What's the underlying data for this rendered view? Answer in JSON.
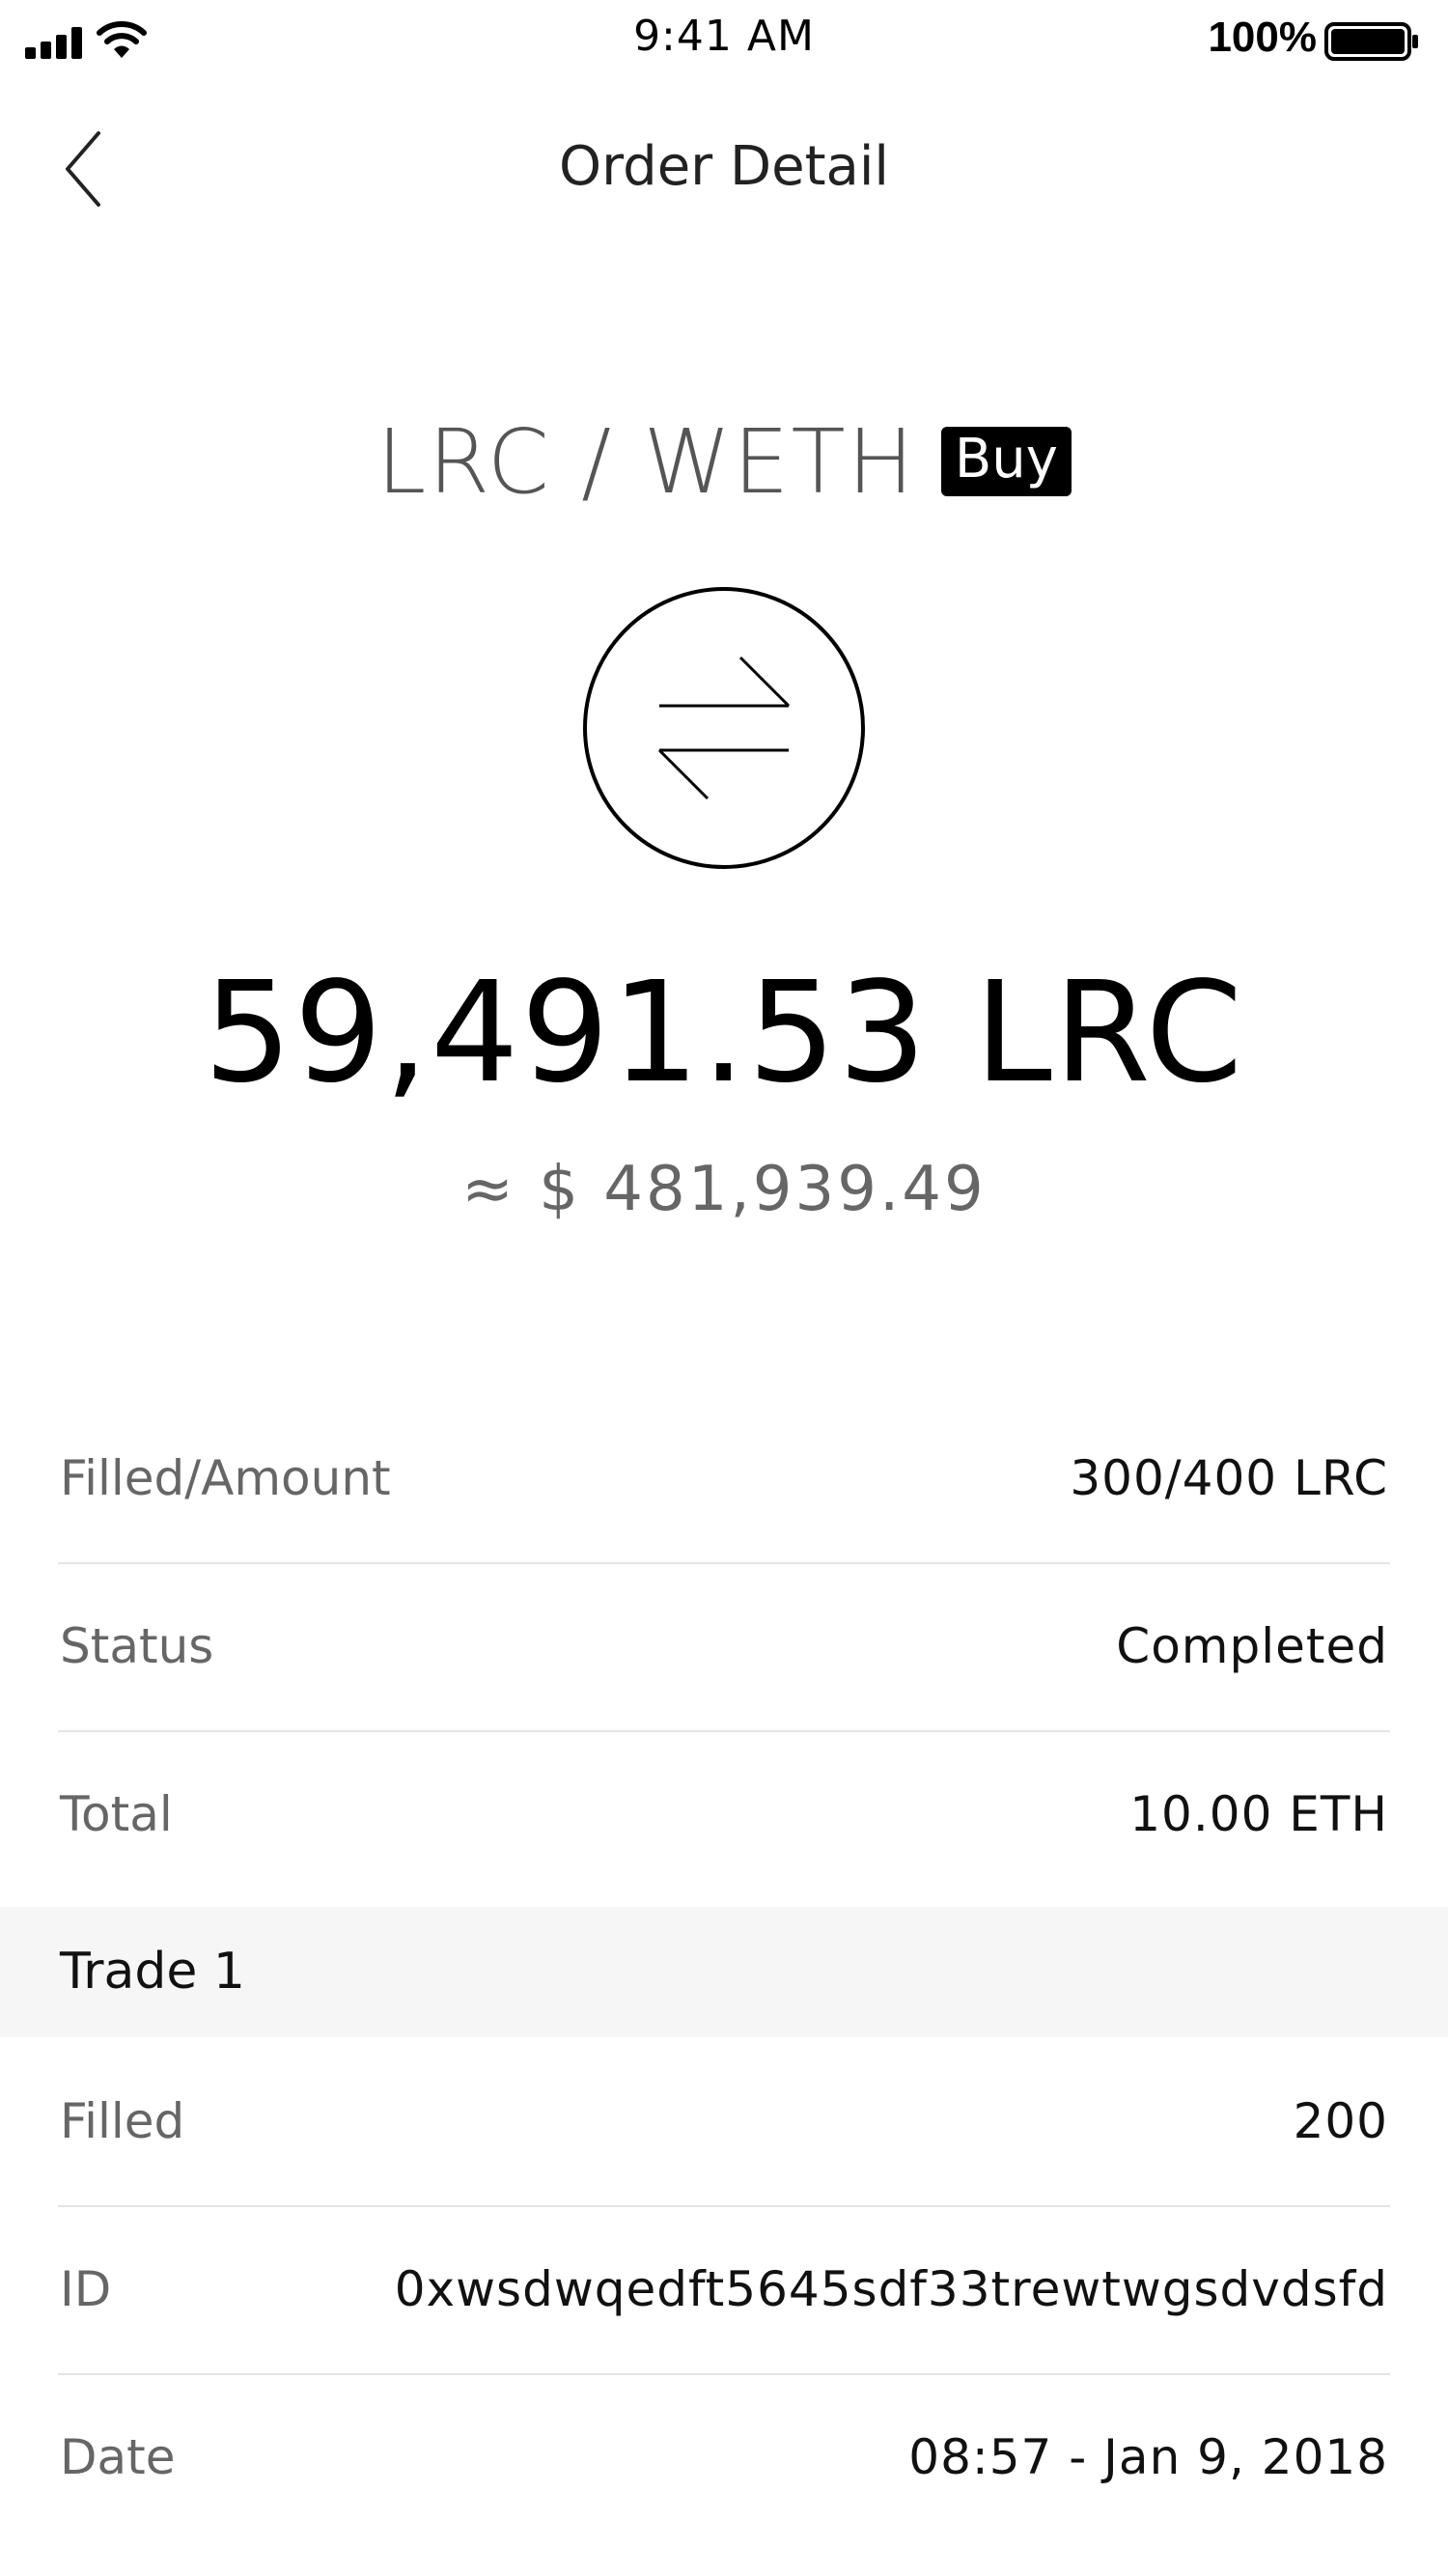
{
  "status_bar": {
    "time": "9:41 AM",
    "battery_percent": "100%",
    "icons": [
      "signal-icon",
      "wifi-icon",
      "battery-icon"
    ]
  },
  "nav": {
    "back_icon": "chevron-left-icon",
    "title": "Order Detail"
  },
  "order": {
    "pair": "LRC / WETH",
    "side": "Buy",
    "icon": "exchange-arrows-icon",
    "amount": "59,491.53 LRC",
    "fiat_value": "≈ $ 481,939.49"
  },
  "details": [
    {
      "label": "Filled/Amount",
      "value": "300/400 LRC"
    },
    {
      "label": "Status",
      "value": "Completed"
    },
    {
      "label": "Total",
      "value": "10.00 ETH"
    }
  ],
  "trade": {
    "title": "Trade 1",
    "rows": [
      {
        "label": "Filled",
        "value": "200"
      },
      {
        "label": "ID",
        "value": "0xwsdwqedft5645sdf33trewtwgsdvdsfd"
      },
      {
        "label": "Date",
        "value": "08:57 - Jan 9, 2018"
      }
    ]
  },
  "colors": {
    "badge_bg": "#000000",
    "section_bg": "#f6f6f6",
    "divider": "#e5e5e5",
    "muted_text": "#666666"
  }
}
